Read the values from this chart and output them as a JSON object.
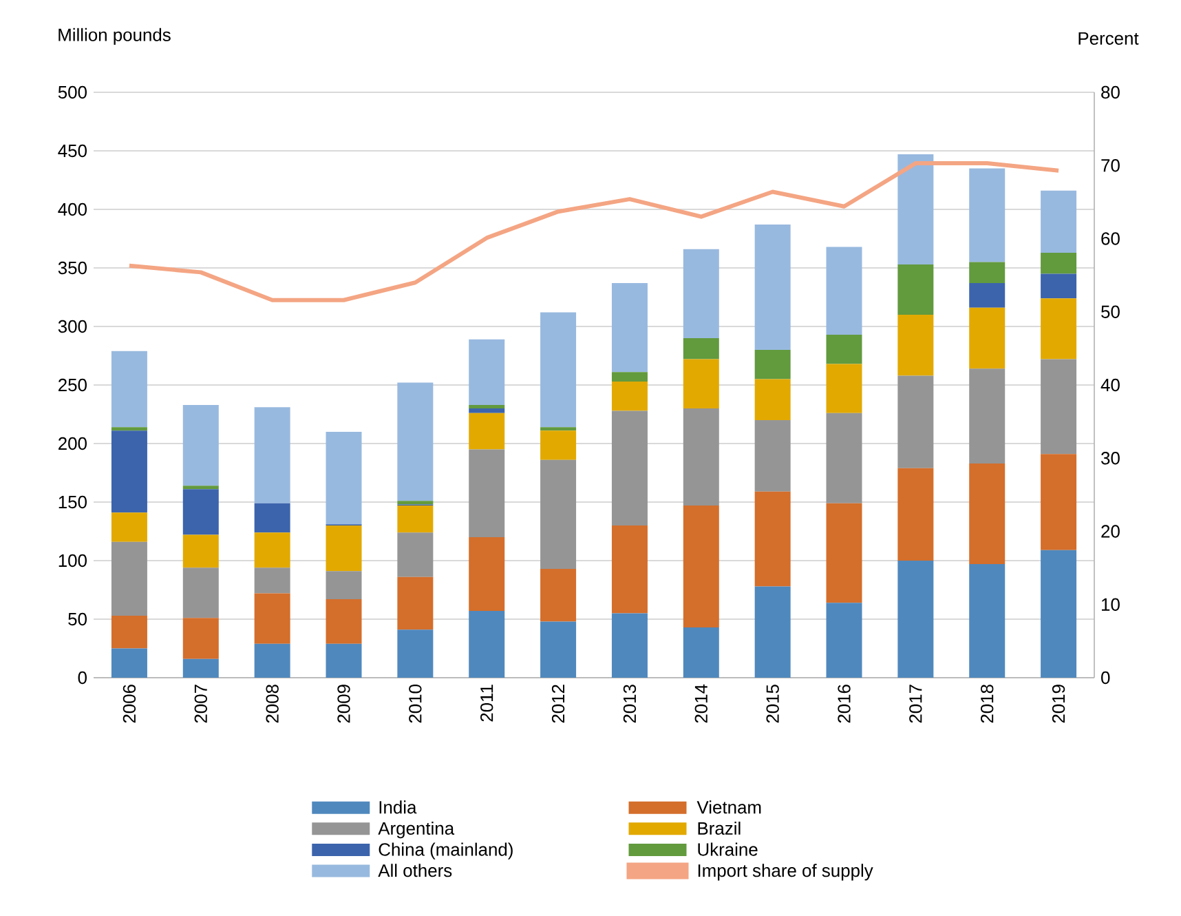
{
  "chart_data": {
    "type": "bar",
    "stacked": true,
    "ylabel": "Million pounds",
    "y2label": "Percent",
    "categories": [
      "2006",
      "2007",
      "2008",
      "2009",
      "2010",
      "2011",
      "2012",
      "2013",
      "2014",
      "2015",
      "2016",
      "2017",
      "2018",
      "2019"
    ],
    "series": [
      {
        "name": "India",
        "color": "#4f88bd",
        "values": [
          25,
          16,
          29,
          29,
          41,
          57,
          48,
          55,
          43,
          78,
          64,
          100,
          97,
          109
        ]
      },
      {
        "name": "Vietnam",
        "color": "#d46e2b",
        "values": [
          28,
          35,
          43,
          38,
          45,
          63,
          45,
          75,
          104,
          81,
          85,
          79,
          86,
          82
        ]
      },
      {
        "name": "Argentina",
        "color": "#959595",
        "values": [
          63,
          43,
          22,
          24,
          38,
          75,
          93,
          98,
          83,
          61,
          77,
          79,
          81,
          81
        ]
      },
      {
        "name": "Brazil",
        "color": "#e2a900",
        "values": [
          25,
          28,
          30,
          39,
          23,
          31,
          25,
          25,
          42,
          35,
          42,
          52,
          52,
          52
        ]
      },
      {
        "name": "China (mainland)",
        "color": "#3c64ad",
        "values": [
          70,
          39,
          25,
          1,
          1,
          4,
          0,
          0,
          0,
          0,
          0,
          0,
          21,
          21
        ]
      },
      {
        "name": "Ukraine",
        "color": "#629a3e",
        "values": [
          3,
          3,
          0,
          0,
          3,
          3,
          3,
          8,
          18,
          25,
          25,
          43,
          18,
          18
        ]
      },
      {
        "name": "All others",
        "color": "#98b9df",
        "values": [
          65,
          69,
          82,
          79,
          101,
          56,
          98,
          76,
          76,
          107,
          75,
          94,
          80,
          53
        ]
      },
      {
        "name": "Import  share of supply",
        "type": "line",
        "axis": "y2",
        "color": "#f4a583",
        "values": [
          56.3,
          55.4,
          51.6,
          51.6,
          54.0,
          60.1,
          63.7,
          65.4,
          63.0,
          66.4,
          64.4,
          70.3,
          70.3,
          69.3
        ]
      }
    ],
    "ylim": [
      0,
      500
    ],
    "yticks": [
      0,
      50,
      100,
      150,
      200,
      250,
      300,
      350,
      400,
      450,
      500
    ],
    "y2lim": [
      0,
      80
    ],
    "y2ticks": [
      0,
      10,
      20,
      30,
      40,
      50,
      60,
      70,
      80
    ],
    "grid": "y",
    "legend": "bottom"
  }
}
